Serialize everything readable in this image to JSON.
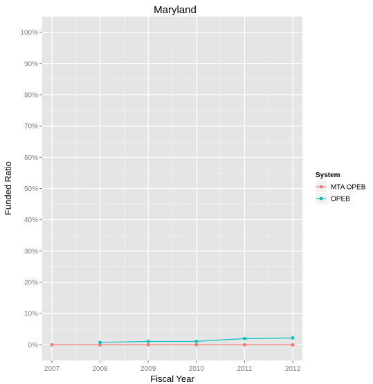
{
  "chart_data": {
    "type": "line",
    "title": "Maryland",
    "xlabel": "Fiscal Year",
    "ylabel": "Funded Ratio",
    "x_ticks": [
      "2007",
      "2008",
      "2009",
      "2010",
      "2011",
      "2012"
    ],
    "y_ticks": [
      "0%",
      "10%",
      "20%",
      "30%",
      "40%",
      "50%",
      "60%",
      "70%",
      "80%",
      "90%",
      "100%"
    ],
    "xlim": [
      2006.8,
      2012.2
    ],
    "ylim": [
      -0.05,
      1.05
    ],
    "grid": true,
    "legend": {
      "title": "System",
      "position": "right"
    },
    "series": [
      {
        "name": "MTA OPEB",
        "color": "#F8766D",
        "points": [
          {
            "x": 2007,
            "y": 0.0
          },
          {
            "x": 2008,
            "y": 0.0
          },
          {
            "x": 2009,
            "y": 0.0
          },
          {
            "x": 2010,
            "y": 0.0
          },
          {
            "x": 2011,
            "y": 0.0
          },
          {
            "x": 2012,
            "y": 0.0
          }
        ]
      },
      {
        "name": "OPEB",
        "color": "#00BFC4",
        "points": [
          {
            "x": 2008,
            "y": 0.008
          },
          {
            "x": 2009,
            "y": 0.011
          },
          {
            "x": 2010,
            "y": 0.011
          },
          {
            "x": 2011,
            "y": 0.02
          },
          {
            "x": 2012,
            "y": 0.022
          }
        ]
      }
    ]
  }
}
